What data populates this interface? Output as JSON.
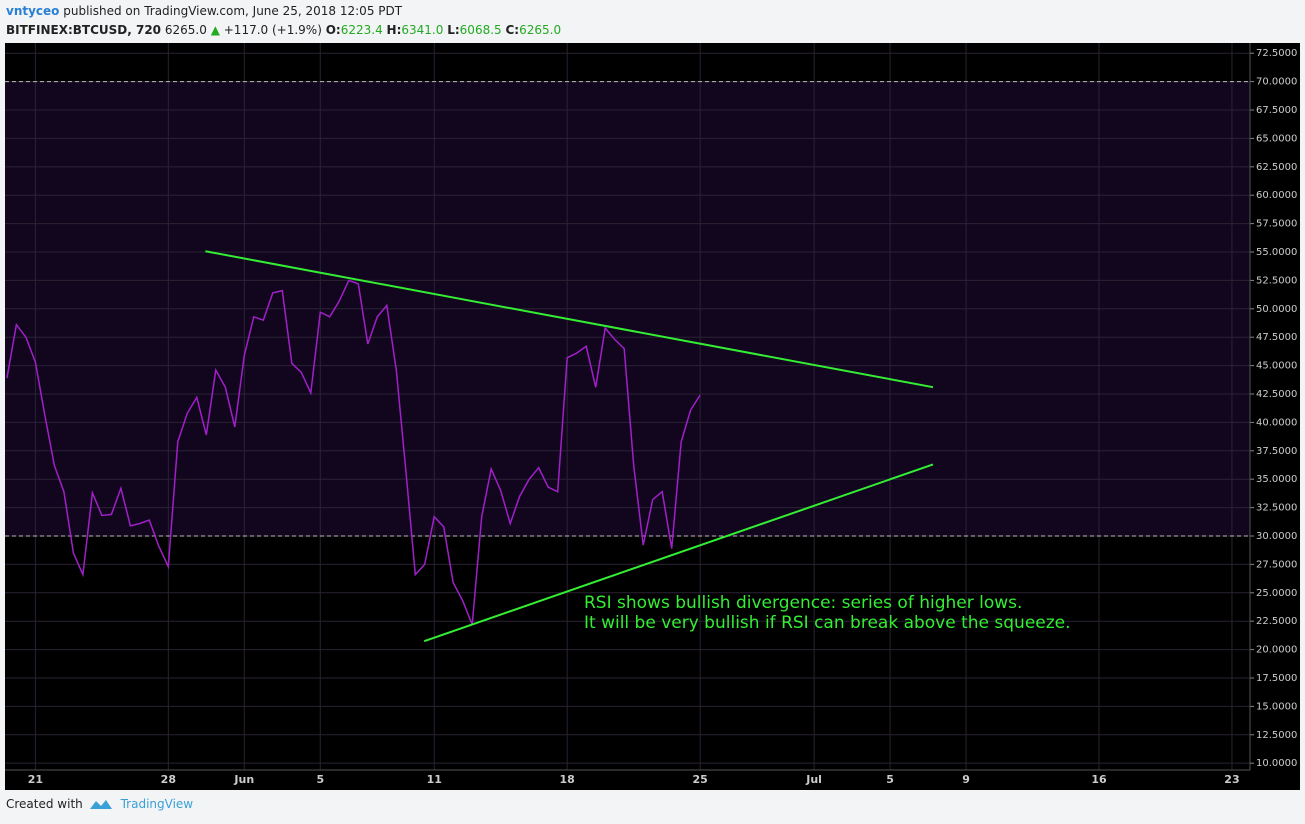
{
  "header": {
    "author": "vntyceo",
    "published": "published on TradingView.com, June 25, 2018 12:05 PDT",
    "symbol": "BITFINEX:BTCUSD, 720",
    "last": "6265.0",
    "arrow": "▲",
    "change": "+117.0 (+1.9%)",
    "ohlc": [
      {
        "label": "O:",
        "value": "6223.4"
      },
      {
        "label": "H:",
        "value": "6341.0"
      },
      {
        "label": "L:",
        "value": "6068.5"
      },
      {
        "label": "C:",
        "value": "6265.0"
      }
    ]
  },
  "chart_data": {
    "type": "line",
    "series": [
      {
        "color": "#a020c8",
        "x": [
          19.5,
          20,
          20.5,
          21,
          21.5,
          22,
          22.5,
          23,
          23.5,
          24,
          24.5,
          25,
          25.5,
          26,
          26.5,
          27,
          27.5,
          28,
          28.5,
          29,
          29.5,
          30,
          30.5,
          31,
          31.5,
          32,
          32.5,
          33,
          33.5,
          34,
          34.5,
          35,
          35.5,
          36,
          36.5,
          37,
          37.5,
          38,
          38.5,
          39,
          39.5,
          40,
          40.5,
          41,
          41.5,
          42,
          42.5,
          43,
          43.5,
          44,
          44.5,
          45,
          45.5,
          46,
          46.5,
          47,
          47.5,
          48,
          48.5,
          49,
          49.5,
          50,
          50.5,
          51,
          51.5,
          52,
          52.5,
          53,
          53.5,
          54,
          54.5,
          55,
          55.5,
          56
        ],
        "values": [
          43.9,
          48.6,
          47.5,
          45.3,
          40.6,
          36.2,
          33.9,
          28.5,
          26.6,
          33.8,
          31.8,
          31.9,
          34.2,
          30.9,
          31.1,
          31.4,
          29.1,
          27.3,
          38.3,
          40.8,
          42.2,
          38.9,
          44.6,
          43.1,
          39.6,
          45.9,
          49.3,
          49.0,
          51.4,
          51.6,
          45.2,
          44.4,
          42.6,
          49.7,
          49.3,
          50.7,
          52.5,
          52.2,
          46.9,
          49.3,
          50.3,
          44.6,
          35.8,
          26.6,
          27.5,
          31.7,
          30.8,
          25.9,
          24.3,
          22.2,
          31.7,
          35.9,
          34.0,
          31.1,
          33.5,
          35.0,
          36.0,
          34.3,
          33.9,
          45.7,
          46.1,
          46.7,
          43.1,
          48.3,
          47.3,
          46.5,
          36.2,
          29.2,
          33.2,
          33.9,
          28.9,
          38.3,
          41.1,
          42.4
        ]
      }
    ],
    "trendlines": [
      {
        "color": "#33ee33",
        "x": [
          29.95,
          68.26
        ],
        "y": [
          55.07,
          43.1
        ]
      },
      {
        "color": "#33ee33",
        "x": [
          41.47,
          68.26
        ],
        "y": [
          20.74,
          36.3
        ]
      }
    ],
    "hlines": [
      30,
      70
    ],
    "band_color": "#12061f",
    "annotations": [
      "RSI shows bullish divergence: series of higher lows.",
      "It will be very bullish if RSI can break above the squeeze."
    ],
    "annotation_color": "#33ee33",
    "xlim": [
      19.4,
      84.95
    ],
    "ylim": [
      9.4,
      73.4
    ],
    "xticks": [
      {
        "value": 21,
        "label": "21"
      },
      {
        "value": 28,
        "label": "28"
      },
      {
        "value": 32,
        "label": "Jun"
      },
      {
        "value": 36,
        "label": "5"
      },
      {
        "value": 42,
        "label": "11"
      },
      {
        "value": 49,
        "label": "18"
      },
      {
        "value": 56,
        "label": "25"
      },
      {
        "value": 62,
        "label": "Jul"
      },
      {
        "value": 66,
        "label": "5"
      },
      {
        "value": 70,
        "label": "9"
      },
      {
        "value": 77,
        "label": "16"
      },
      {
        "value": 84,
        "label": "23"
      }
    ],
    "yticks": [
      {
        "value": 10,
        "label": "10.0000"
      },
      {
        "value": 12.5,
        "label": "12.5000"
      },
      {
        "value": 15,
        "label": "15.0000"
      },
      {
        "value": 17.5,
        "label": "17.5000"
      },
      {
        "value": 20,
        "label": "20.0000"
      },
      {
        "value": 22.5,
        "label": "22.5000"
      },
      {
        "value": 25,
        "label": "25.0000"
      },
      {
        "value": 27.5,
        "label": "27.5000"
      },
      {
        "value": 30,
        "label": "30.0000"
      },
      {
        "value": 32.5,
        "label": "32.5000"
      },
      {
        "value": 35,
        "label": "35.0000"
      },
      {
        "value": 37.5,
        "label": "37.5000"
      },
      {
        "value": 40,
        "label": "40.0000"
      },
      {
        "value": 42.5,
        "label": "42.5000"
      },
      {
        "value": 45,
        "label": "45.0000"
      },
      {
        "value": 47.5,
        "label": "47.5000"
      },
      {
        "value": 50,
        "label": "50.0000"
      },
      {
        "value": 52.5,
        "label": "52.5000"
      },
      {
        "value": 55,
        "label": "55.0000"
      },
      {
        "value": 57.5,
        "label": "57.5000"
      },
      {
        "value": 60,
        "label": "60.0000"
      },
      {
        "value": 62.5,
        "label": "62.5000"
      },
      {
        "value": 65,
        "label": "65.0000"
      },
      {
        "value": 67.5,
        "label": "67.5000"
      },
      {
        "value": 70,
        "label": "70.0000"
      },
      {
        "value": 72.5,
        "label": "72.5000"
      }
    ],
    "grid": true
  },
  "footer": {
    "created": "Created with",
    "brand": "TradingView"
  }
}
